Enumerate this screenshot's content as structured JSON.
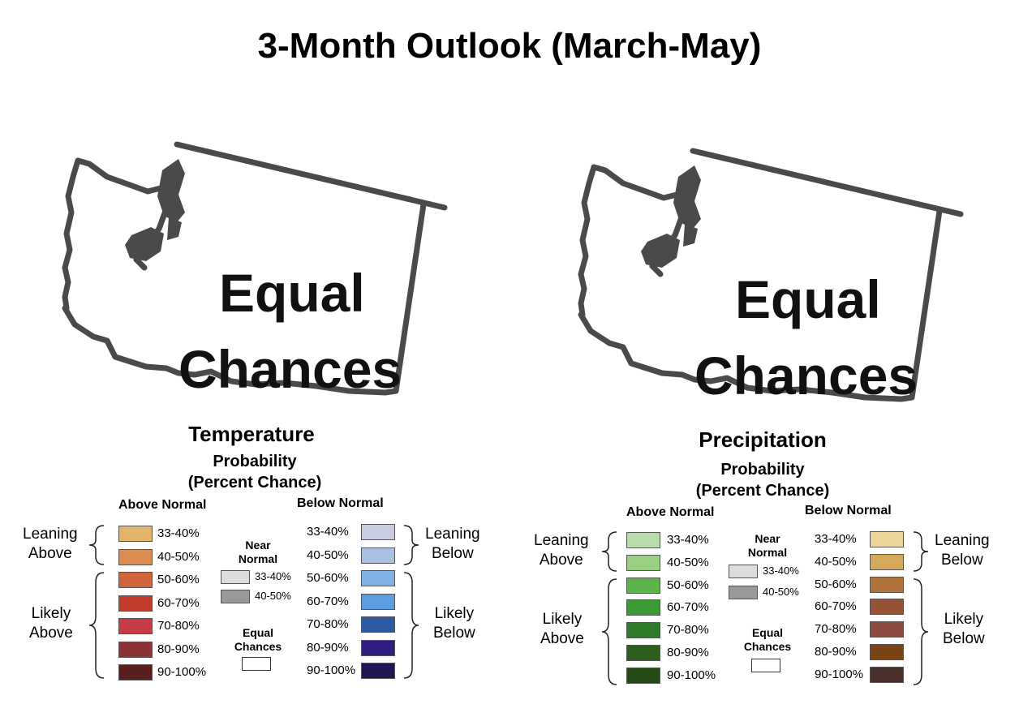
{
  "title": "3-Month Outlook (March-May)",
  "temperature": {
    "map_text_line1": "Equal",
    "map_text_line2": "Chances",
    "title": "Temperature",
    "subtitle_line1": "Probability",
    "subtitle_line2": "(Percent Chance)",
    "above_head": "Above Normal",
    "below_head": "Below Normal",
    "leaning_above": [
      "Leaning",
      "Above"
    ],
    "likely_above": [
      "Likely",
      "Above"
    ],
    "leaning_below": [
      "Leaning",
      "Below"
    ],
    "likely_below": [
      "Likely",
      "Below"
    ],
    "near_normal": [
      "Near",
      "Normal"
    ],
    "equal_chances": [
      "Equal",
      "Chances"
    ],
    "near_items": [
      {
        "label": "33-40%",
        "color": "#dcdcdc"
      },
      {
        "label": "40-50%",
        "color": "#999999"
      }
    ],
    "above_items": [
      {
        "label": "33-40%",
        "color": "#e2b46c"
      },
      {
        "label": "40-50%",
        "color": "#dc8c50"
      },
      {
        "label": "50-60%",
        "color": "#d2643c"
      },
      {
        "label": "60-70%",
        "color": "#c03c2c"
      },
      {
        "label": "70-80%",
        "color": "#c83c46"
      },
      {
        "label": "80-90%",
        "color": "#8c3234"
      },
      {
        "label": "90-100%",
        "color": "#5a2020"
      }
    ],
    "below_items": [
      {
        "label": "33-40%",
        "color": "#c8cce2"
      },
      {
        "label": "40-50%",
        "color": "#aac0e2"
      },
      {
        "label": "50-60%",
        "color": "#82b2e4"
      },
      {
        "label": "60-70%",
        "color": "#5a9ee0"
      },
      {
        "label": "70-80%",
        "color": "#2c5aa2"
      },
      {
        "label": "80-90%",
        "color": "#321e82"
      },
      {
        "label": "90-100%",
        "color": "#201852"
      }
    ]
  },
  "precipitation": {
    "map_text_line1": "Equal",
    "map_text_line2": "Chances",
    "title": "Precipitation",
    "subtitle_line1": "Probability",
    "subtitle_line2": "(Percent Chance)",
    "above_head": "Above Normal",
    "below_head": "Below Normal",
    "leaning_above": [
      "Leaning",
      "Above"
    ],
    "likely_above": [
      "Likely",
      "Above"
    ],
    "leaning_below": [
      "Leaning",
      "Below"
    ],
    "likely_below": [
      "Likely",
      "Below"
    ],
    "near_normal": [
      "Near",
      "Normal"
    ],
    "equal_chances": [
      "Equal",
      "Chances"
    ],
    "near_items": [
      {
        "label": "33-40%",
        "color": "#dcdcdc"
      },
      {
        "label": "40-50%",
        "color": "#999999"
      }
    ],
    "above_items": [
      {
        "label": "33-40%",
        "color": "#b8dcaa"
      },
      {
        "label": "40-50%",
        "color": "#98d084"
      },
      {
        "label": "50-60%",
        "color": "#5cb44a"
      },
      {
        "label": "60-70%",
        "color": "#3c9a36"
      },
      {
        "label": "70-80%",
        "color": "#2c7a2a"
      },
      {
        "label": "80-90%",
        "color": "#2c5e1e"
      },
      {
        "label": "90-100%",
        "color": "#234a14"
      }
    ],
    "below_items": [
      {
        "label": "33-40%",
        "color": "#eed69a"
      },
      {
        "label": "40-50%",
        "color": "#d4aa5a"
      },
      {
        "label": "50-60%",
        "color": "#b2723c"
      },
      {
        "label": "60-70%",
        "color": "#965234"
      },
      {
        "label": "70-80%",
        "color": "#8a4a3c"
      },
      {
        "label": "80-90%",
        "color": "#7a4414"
      },
      {
        "label": "90-100%",
        "color": "#4a2e2a"
      }
    ]
  }
}
